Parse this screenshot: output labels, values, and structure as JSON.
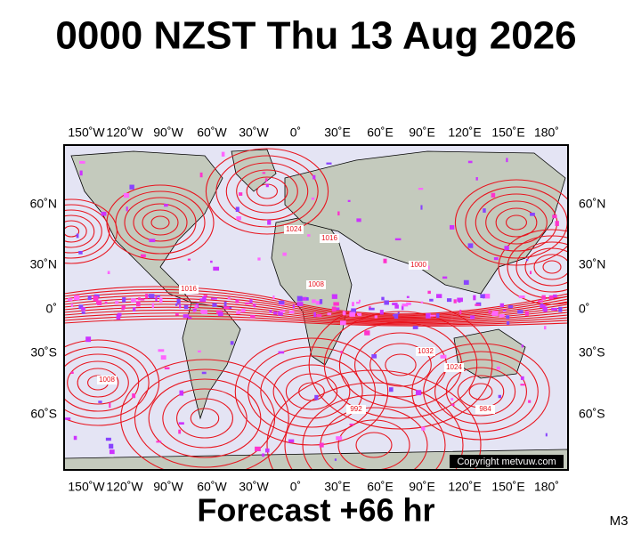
{
  "header": {
    "title": "0000 NZST Thu 13 Aug 2026"
  },
  "map": {
    "top_longitude_labels": [
      "150˚W",
      "120˚W",
      "90˚W",
      "60˚W",
      "30˚W",
      "0˚",
      "30˚E",
      "60˚E",
      "90˚E",
      "120˚E",
      "150˚E",
      "180˚"
    ],
    "bottom_longitude_labels": [
      "150˚W",
      "120˚W",
      "90˚W",
      "60˚W",
      "30˚W",
      "0˚",
      "30˚E",
      "60˚E",
      "90˚E",
      "120˚E",
      "150˚E",
      "180˚"
    ],
    "left_latitude_labels": [
      "60˚N",
      "30˚N",
      "0˚",
      "30˚S",
      "60˚S"
    ],
    "right_latitude_labels": [
      "60˚N",
      "30˚N",
      "0˚",
      "30˚S",
      "60˚S"
    ],
    "isobar_labels": [
      "1024",
      "1016",
      "1008",
      "1000",
      "1032",
      "1024",
      "1016",
      "1008",
      "992",
      "984"
    ],
    "copyright": "Copyright metvuw.com"
  },
  "footer": {
    "forecast": "Forecast +66 hr",
    "model": "M3"
  }
}
